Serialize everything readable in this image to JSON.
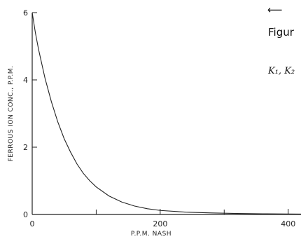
{
  "chart_data": {
    "type": "line",
    "xlabel": "P.P.M. NASH",
    "ylabel": "FERROUS ION CONC., P.P.M.",
    "xlim": [
      0,
      420
    ],
    "ylim": [
      0,
      6
    ],
    "x_ticks": [
      0,
      200,
      400
    ],
    "x_minor_ticks": [
      100,
      300
    ],
    "y_ticks": [
      0,
      2,
      4,
      6
    ],
    "grid": false,
    "series": [
      {
        "values_x": [
          0,
          5,
          10,
          20,
          30,
          40,
          50,
          60,
          70,
          80,
          90,
          100,
          120,
          140,
          160,
          180,
          200,
          240,
          280,
          320,
          360,
          400,
          420
        ],
        "values_y": [
          6.0,
          5.4,
          4.9,
          4.05,
          3.35,
          2.75,
          2.25,
          1.85,
          1.5,
          1.22,
          1.0,
          0.82,
          0.55,
          0.37,
          0.25,
          0.17,
          0.12,
          0.07,
          0.045,
          0.03,
          0.02,
          0.015,
          0.012
        ]
      }
    ]
  },
  "side_text": {
    "arrow": "⟵",
    "figure_label": "Figur",
    "constants_label": "K₁, K₂"
  }
}
